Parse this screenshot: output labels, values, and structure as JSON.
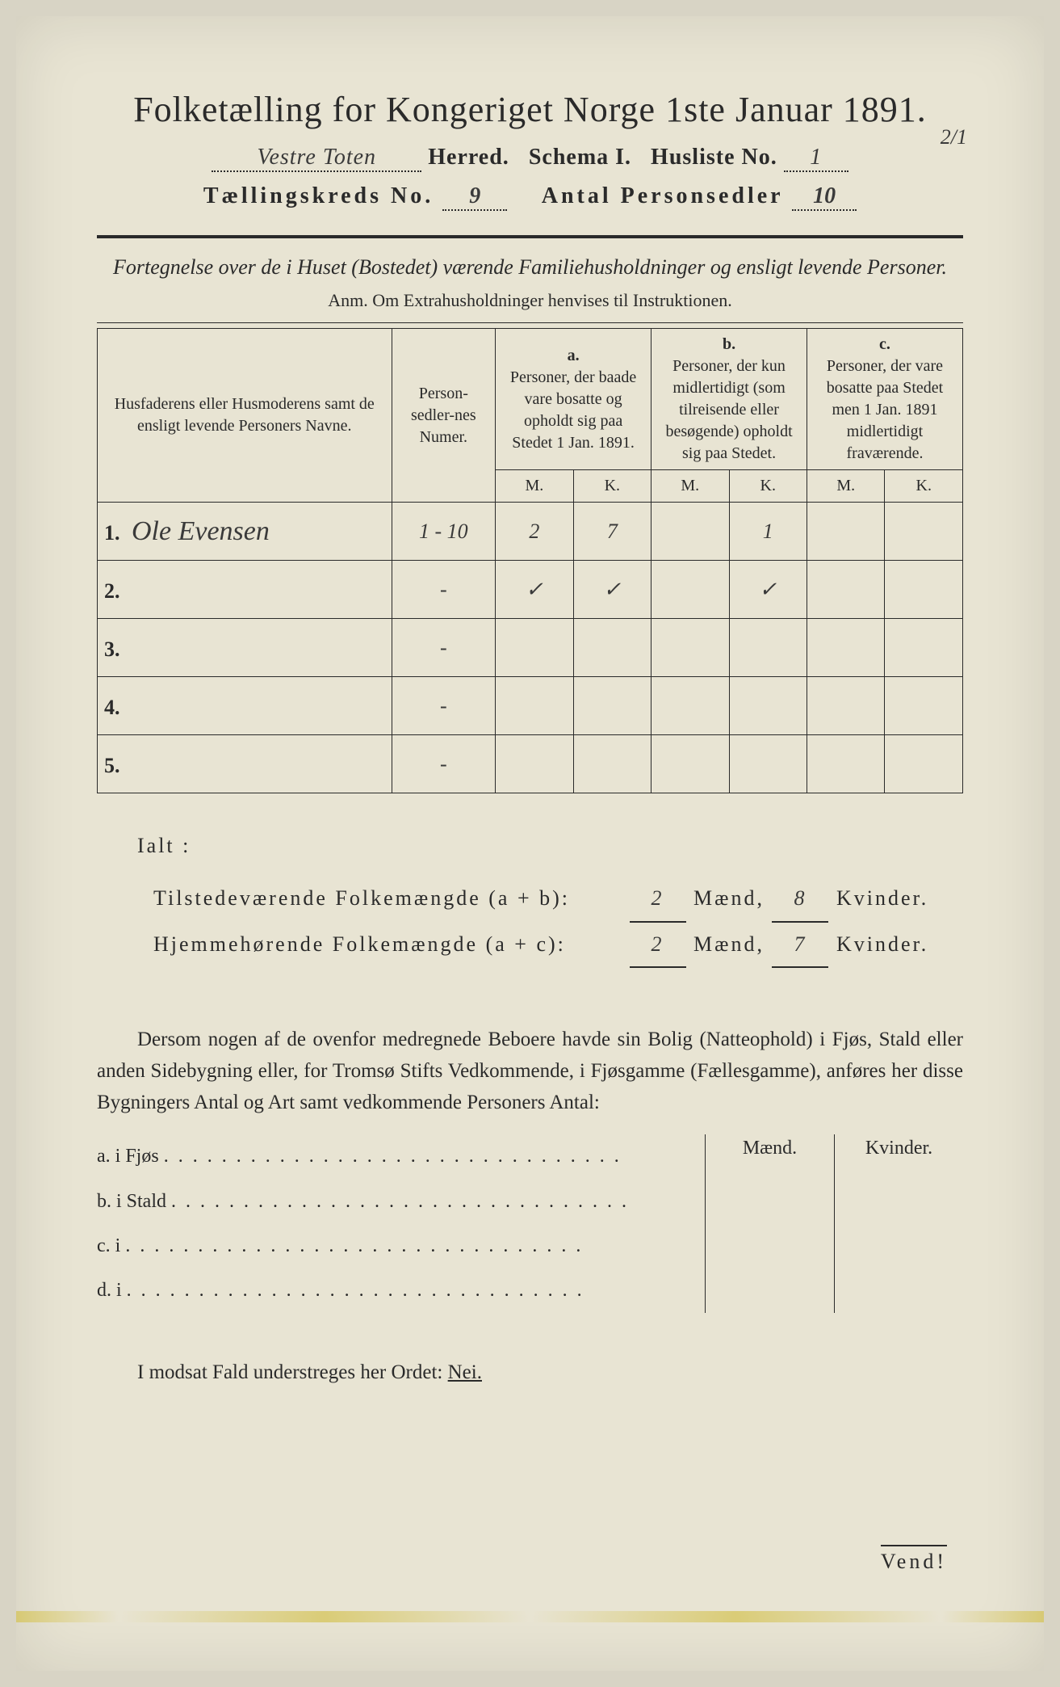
{
  "header": {
    "title": "Folketælling for Kongeriget Norge 1ste Januar 1891.",
    "herred_hand": "Vestre Toten",
    "herred_label": "Herred.",
    "schema": "Schema I.",
    "husliste_label": "Husliste No.",
    "husliste_no": "1",
    "corner_note": "2/1",
    "kreds_label": "Tællingskreds No.",
    "kreds_no": "9",
    "sedler_label": "Antal Personsedler",
    "sedler_no": "10"
  },
  "section": {
    "desc": "Fortegnelse over de i Huset (Bostedet) værende Familiehusholdninger og ensligt levende Personer.",
    "anm": "Anm.   Om Extrahusholdninger henvises til Instruktionen."
  },
  "table": {
    "col_name": "Husfaderens eller Husmoderens samt de ensligt levende Personers Navne.",
    "col_num": "Person-sedler-nes Numer.",
    "col_a_top": "a.",
    "col_a": "Personer, der baade vare bosatte og opholdt sig paa Stedet 1 Jan. 1891.",
    "col_b_top": "b.",
    "col_b": "Personer, der kun midlertidigt (som tilreisende eller besøgende) opholdt sig paa Stedet.",
    "col_c_top": "c.",
    "col_c": "Personer, der vare bosatte paa Stedet men 1 Jan. 1891 midlertidigt fraværende.",
    "mk_m": "M.",
    "mk_k": "K.",
    "rows": [
      {
        "n": "1.",
        "name": "Ole Evensen",
        "num": "1 - 10",
        "am": "2",
        "ak": "7",
        "bm": "",
        "bk": "1",
        "cm": "",
        "ck": ""
      },
      {
        "n": "2.",
        "name": "",
        "num": "-",
        "am": "✓",
        "ak": "✓",
        "bm": "",
        "bk": "✓",
        "cm": "",
        "ck": ""
      },
      {
        "n": "3.",
        "name": "",
        "num": "-",
        "am": "",
        "ak": "",
        "bm": "",
        "bk": "",
        "cm": "",
        "ck": ""
      },
      {
        "n": "4.",
        "name": "",
        "num": "-",
        "am": "",
        "ak": "",
        "bm": "",
        "bk": "",
        "cm": "",
        "ck": ""
      },
      {
        "n": "5.",
        "name": "",
        "num": "-",
        "am": "",
        "ak": "",
        "bm": "",
        "bk": "",
        "cm": "",
        "ck": ""
      }
    ]
  },
  "ialt": {
    "label": "Ialt :",
    "line1_label": "Tilstedeværende Folkemængde (a + b):",
    "line1_m": "2",
    "line1_k": "8",
    "line2_label": "Hjemmehørende Folkemængde (a + c):",
    "line2_m": "2",
    "line2_k": "7",
    "maend": "Mænd,",
    "kvinder": "Kvinder."
  },
  "para": {
    "text": "Dersom nogen af de ovenfor medregnede Beboere havde sin Bolig (Natteophold) i Fjøs, Stald eller anden Sidebygning eller, for Tromsø Stifts Vedkommende, i Fjøsgamme (Fællesgamme), anføres her disse Bygningers Antal og Art samt vedkommende Personers Antal:"
  },
  "side": {
    "maend": "Mænd.",
    "kvinder": "Kvinder.",
    "a": "a.  i      Fjøs",
    "b": "b.  i      Stald",
    "c": "c.  i",
    "d": "d.  i",
    "dots": ". . . . . . . . . . . . . . . . . . . . . . . . . . . . . . . ."
  },
  "nei": "I modsat Fald understreges her Ordet: ",
  "nei_word": "Nei.",
  "vend": "Vend!"
}
